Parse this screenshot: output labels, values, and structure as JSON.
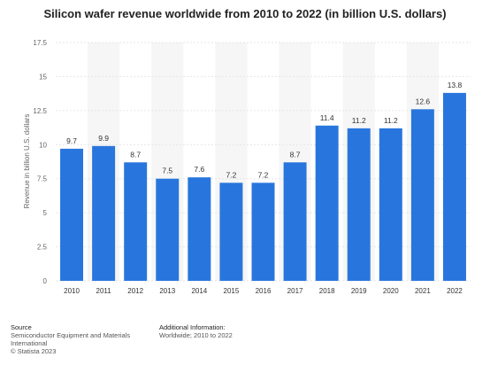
{
  "colors": {
    "bar": "#2876dd",
    "band": "#f6f6f6",
    "gridline": "#e6e6e6",
    "axis_text": "#666666",
    "label_text": "#333333"
  },
  "chart_data": {
    "type": "bar",
    "title": "Silicon wafer revenue worldwide from 2010 to 2022 (in billion U.S. dollars)",
    "xlabel": "",
    "ylabel": "Revenue in billion U.S. dollars",
    "categories": [
      "2010",
      "2011",
      "2012",
      "2013",
      "2014",
      "2015",
      "2016",
      "2017",
      "2018",
      "2019",
      "2020",
      "2021",
      "2022"
    ],
    "values": [
      9.7,
      9.9,
      8.7,
      7.5,
      7.6,
      7.2,
      7.2,
      8.7,
      11.4,
      11.2,
      11.2,
      12.6,
      13.8
    ],
    "data_labels": [
      "9.7",
      "9.9",
      "8.7",
      "7.5",
      "7.6",
      "7.2",
      "7.2",
      "8.7",
      "11.4",
      "11.2",
      "11.2",
      "12.6",
      "13.8"
    ],
    "ylim": [
      0,
      17.5
    ],
    "yticks": [
      0,
      2.5,
      5,
      7.5,
      10,
      12.5,
      15,
      17.5
    ],
    "ytick_labels": [
      "0",
      "2.5",
      "5",
      "7.5",
      "10",
      "12.5",
      "15",
      "17.5"
    ],
    "grid": true,
    "legend": "none"
  },
  "footer": {
    "source_heading": "Source",
    "source_lines": [
      "Semiconductor Equipment and Materials",
      "International",
      "© Statista 2023"
    ],
    "info_heading": "Additional Information:",
    "info_lines": [
      "Worldwide; 2010 to 2022"
    ]
  }
}
